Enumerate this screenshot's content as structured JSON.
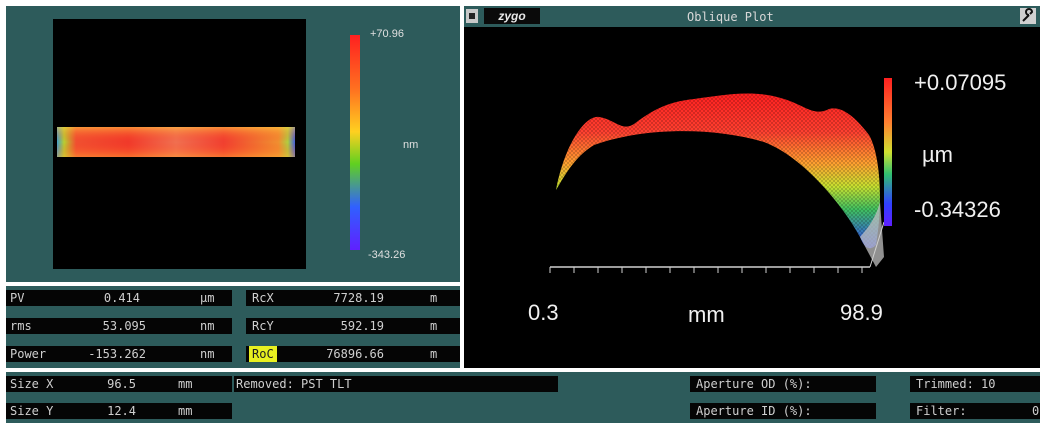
{
  "map_panel": {
    "colorbar": {
      "max_label": "+70.96",
      "unit_label": "nm",
      "min_label": "-343.26"
    }
  },
  "oblique_plot": {
    "logo": "zygo",
    "title": "Oblique Plot",
    "menu_icon": "square-menu-icon",
    "tool_icon": "wrench-icon",
    "colorbar": {
      "max_label": "+0.07095",
      "unit_label": "µm",
      "min_label": "-0.34326"
    },
    "x_axis": {
      "min_label": "0.3",
      "unit_label": "mm",
      "max_label": "98.9"
    }
  },
  "results": {
    "pv": {
      "label": "PV",
      "value": "0.414",
      "unit": "µm"
    },
    "rms": {
      "label": "rms",
      "value": "53.095",
      "unit": "nm"
    },
    "power": {
      "label": "Power",
      "value": "-153.262",
      "unit": "nm"
    },
    "rcx": {
      "label": "RcX",
      "value": "7728.19",
      "unit": "m"
    },
    "rcy": {
      "label": "RcY",
      "value": "592.19",
      "unit": "m"
    },
    "roc": {
      "label": "RoC",
      "value": "76896.66",
      "unit": "m"
    }
  },
  "bottom": {
    "size_x": {
      "label": "Size X",
      "value": "96.5",
      "unit": "mm"
    },
    "size_y": {
      "label": "Size Y",
      "value": "12.4",
      "unit": "mm"
    },
    "removed": "Removed: PST TLT",
    "aperture_od": "Aperture OD (%):",
    "aperture_id": "Aperture ID (%):",
    "trimmed": "Trimmed: 10",
    "filter": "Filter:",
    "filter_value": "0"
  }
}
